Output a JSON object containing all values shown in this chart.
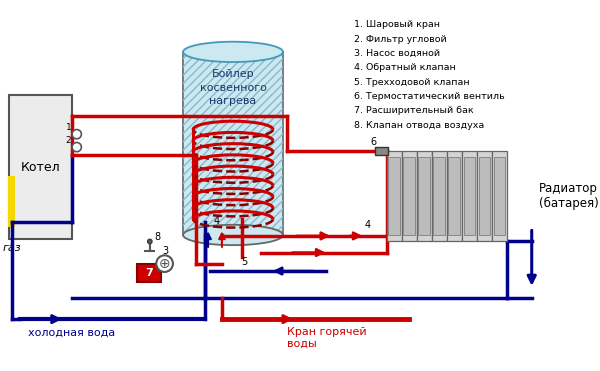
{
  "bg_color": "#ffffff",
  "legend_items": [
    "1. Шаровый кран",
    "2. Фильтр угловой",
    "3. Насос водяной",
    "4. Обратный клапан",
    "5. Трехходовой клапан",
    "6. Термостатический вентиль",
    "7. Расширительный бак",
    "8. Клапан отвода воздуха"
  ],
  "label_boiler": "Бойлер\nкосвенного\nнагрева",
  "label_kotel": "Котел",
  "label_radiator": "Радиатор\n(батарея)",
  "label_cold": "холодная вода",
  "label_hot": "Кран горячей\nводы",
  "label_gaz": "газ",
  "red": "#cc0000",
  "blue": "#00008b",
  "pipe_lw": 2.5
}
